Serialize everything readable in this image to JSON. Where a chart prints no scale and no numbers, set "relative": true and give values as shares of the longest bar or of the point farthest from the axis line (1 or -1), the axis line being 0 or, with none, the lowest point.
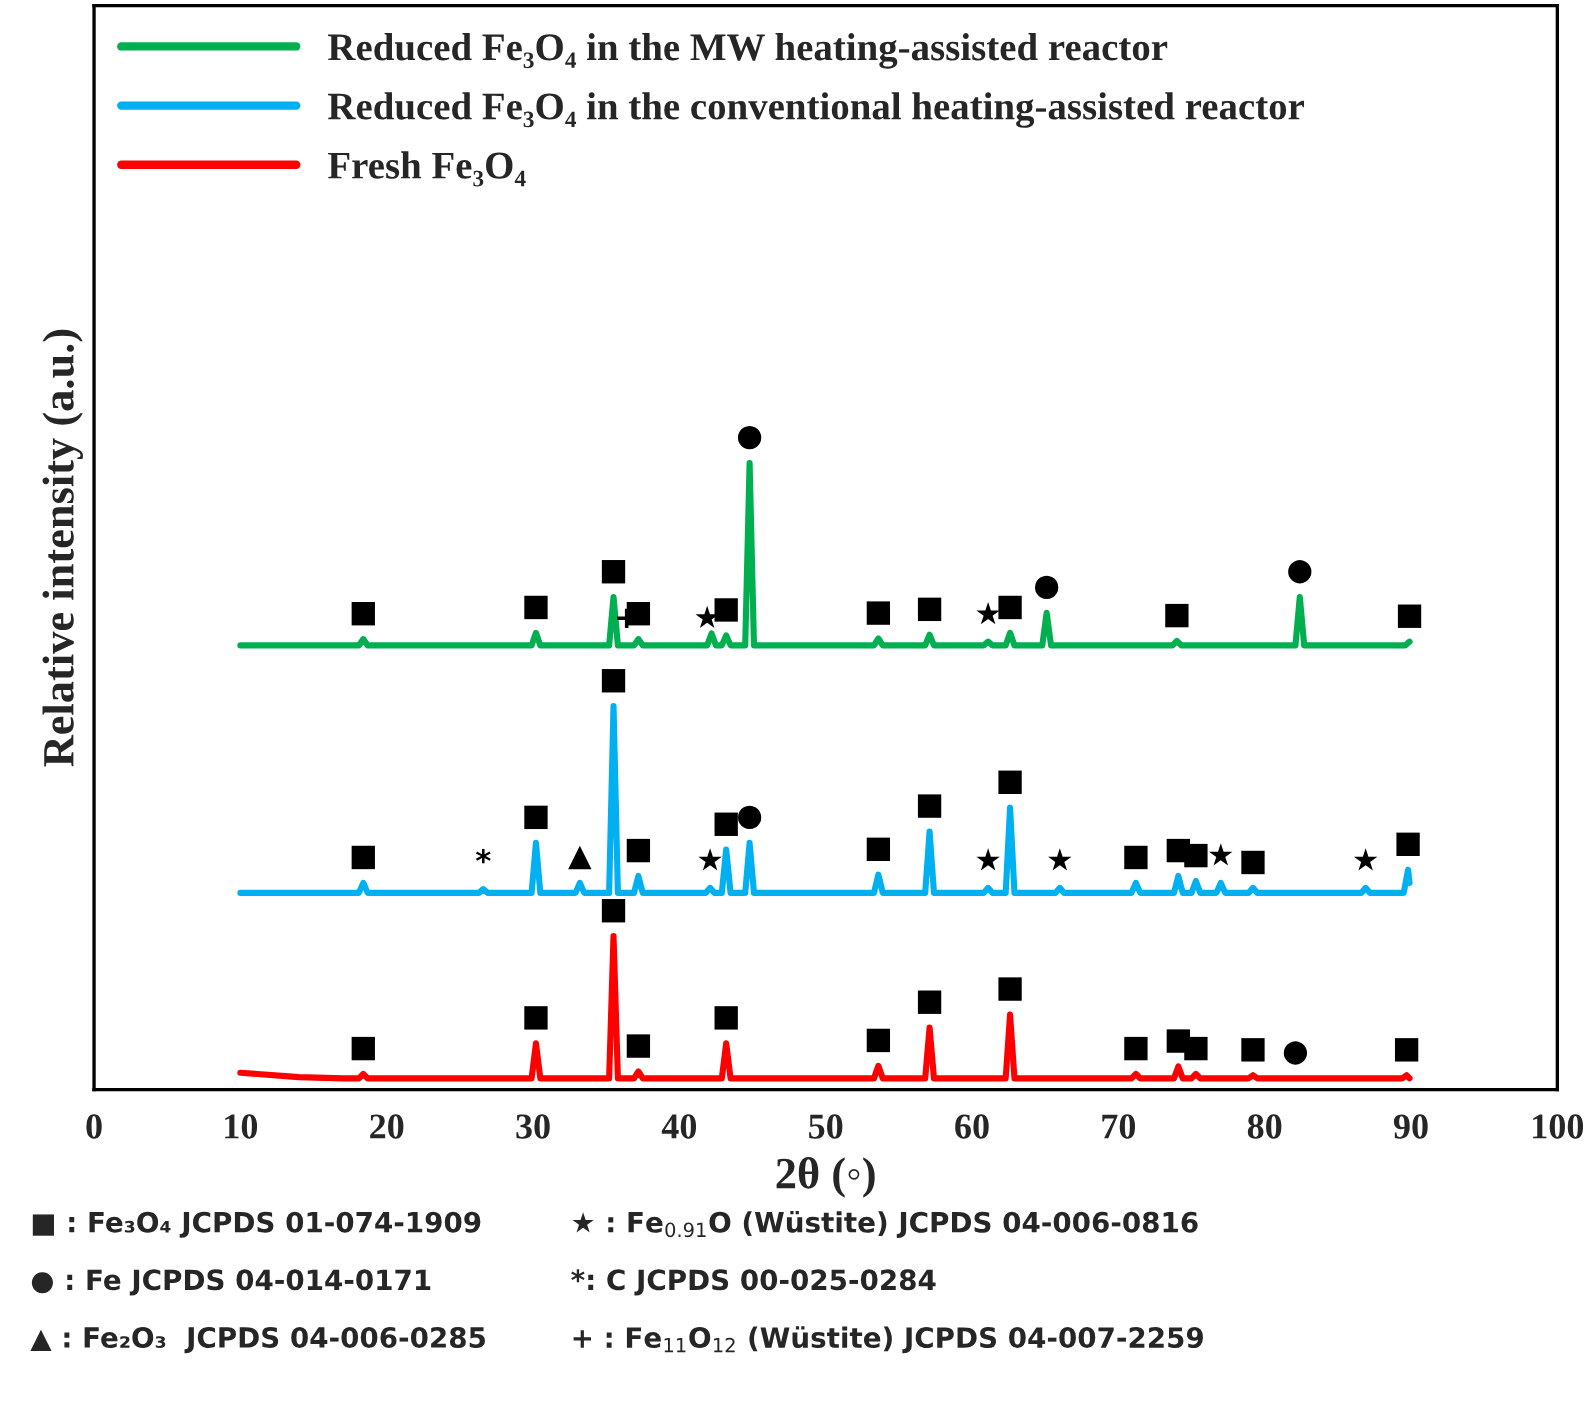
{
  "chart_data": {
    "type": "line",
    "relative": true,
    "xlabel": "2θ (◦)",
    "ylabel": "Relative intensity (a.u.)",
    "xlim": [
      0,
      100
    ],
    "xticks": [
      0,
      10,
      20,
      30,
      40,
      50,
      60,
      70,
      80,
      90,
      100
    ],
    "tick_labels": "x",
    "grid": false,
    "legend": "top left",
    "marker": "none",
    "line_style": "solid",
    "series": [
      {
        "name": "Reduced Fe₃O₄ in the MW heating-assisted reactor",
        "color": "#00b050",
        "x": [
          10,
          18.1,
          18.4,
          18.7,
          29.9,
          30.2,
          30.5,
          35.2,
          35.5,
          35.8,
          36.9,
          37.2,
          37.5,
          41.9,
          42.2,
          42.5,
          42.9,
          43.2,
          43.5,
          44.5,
          44.8,
          45.1,
          53.3,
          53.6,
          53.9,
          56.8,
          57.1,
          57.4,
          60.8,
          61.1,
          61.4,
          62.3,
          62.6,
          62.9,
          64.8,
          65.1,
          65.4,
          73.7,
          74.0,
          74.3,
          82.1,
          82.4,
          82.7,
          89.6,
          89.9
        ],
        "values": [
          0.709,
          0.709,
          0.719,
          0.709,
          0.709,
          0.729,
          0.709,
          0.709,
          0.786,
          0.709,
          0.709,
          0.719,
          0.709,
          0.709,
          0.728,
          0.709,
          0.709,
          0.725,
          0.709,
          0.709,
          1,
          0.709,
          0.709,
          0.72,
          0.709,
          0.709,
          0.726,
          0.709,
          0.709,
          0.715,
          0.709,
          0.709,
          0.729,
          0.709,
          0.709,
          0.761,
          0.709,
          0.709,
          0.716,
          0.709,
          0.709,
          0.786,
          0.709,
          0.709,
          0.715
        ]
      },
      {
        "name": "Reduced Fe₃O₄ in the conventional heating-assisted reactor",
        "color": "#00b0f0",
        "x": [
          10,
          18.1,
          18.4,
          18.7,
          26.3,
          26.6,
          26.9,
          29.9,
          30.2,
          30.5,
          32.9,
          33.2,
          33.5,
          35.2,
          35.5,
          35.8,
          36.9,
          37.2,
          37.5,
          41.8,
          42.1,
          42.4,
          42.9,
          43.2,
          43.5,
          44.5,
          44.8,
          45.1,
          53.3,
          53.6,
          53.9,
          56.8,
          57.1,
          57.4,
          60.8,
          61.1,
          61.4,
          62.3,
          62.6,
          62.9,
          65.7,
          66.0,
          66.3,
          70.9,
          71.2,
          71.5,
          73.8,
          74.1,
          74.4,
          75.0,
          75.3,
          75.6,
          76.7,
          77.0,
          77.3,
          78.9,
          79.2,
          79.5,
          86.6,
          86.9,
          87.2,
          89.5,
          89.8,
          89.9
        ],
        "values": [
          0.314,
          0.314,
          0.33,
          0.314,
          0.314,
          0.32,
          0.314,
          0.314,
          0.394,
          0.314,
          0.314,
          0.33,
          0.314,
          0.314,
          0.612,
          0.314,
          0.314,
          0.341,
          0.314,
          0.314,
          0.322,
          0.314,
          0.314,
          0.383,
          0.314,
          0.314,
          0.394,
          0.314,
          0.314,
          0.343,
          0.314,
          0.314,
          0.412,
          0.314,
          0.314,
          0.322,
          0.314,
          0.314,
          0.45,
          0.314,
          0.314,
          0.322,
          0.314,
          0.314,
          0.33,
          0.314,
          0.314,
          0.341,
          0.314,
          0.314,
          0.333,
          0.314,
          0.314,
          0.33,
          0.314,
          0.314,
          0.322,
          0.314,
          0.314,
          0.322,
          0.314,
          0.314,
          0.351,
          0.33
        ]
      },
      {
        "name": "Fresh Fe₃O₄",
        "color": "#ff0000",
        "x": [
          10,
          14,
          17,
          18.1,
          18.4,
          18.7,
          29.9,
          30.2,
          30.5,
          35.2,
          35.5,
          35.8,
          36.9,
          37.2,
          37.5,
          42.9,
          43.2,
          43.5,
          53.3,
          53.6,
          53.9,
          56.8,
          57.1,
          57.4,
          62.3,
          62.6,
          62.9,
          70.9,
          71.2,
          71.5,
          73.8,
          74.1,
          74.4,
          75.0,
          75.3,
          75.6,
          78.9,
          79.2,
          79.5,
          89.4,
          89.7,
          89.9
        ],
        "values": [
          0.027,
          0.02,
          0.018,
          0.018,
          0.025,
          0.018,
          0.018,
          0.074,
          0.018,
          0.018,
          0.245,
          0.018,
          0.018,
          0.029,
          0.018,
          0.018,
          0.074,
          0.018,
          0.018,
          0.038,
          0.018,
          0.018,
          0.099,
          0.018,
          0.018,
          0.12,
          0.018,
          0.018,
          0.025,
          0.018,
          0.018,
          0.037,
          0.018,
          0.018,
          0.025,
          0.018,
          0.018,
          0.023,
          0.018,
          0.018,
          0.023,
          0.018
        ]
      }
    ],
    "annotations": [
      {
        "text": "■",
        "x": 18.4,
        "y": 0.719
      },
      {
        "text": "■",
        "x": 30.2,
        "y": 0.729
      },
      {
        "text": "■",
        "x": 35.5,
        "y": 0.786
      },
      {
        "text": "+",
        "x": 36.4,
        "y": 0.709
      },
      {
        "text": "■",
        "x": 37.2,
        "y": 0.719
      },
      {
        "text": "★",
        "x": 41.9,
        "y": 0.709
      },
      {
        "text": "■",
        "x": 43.2,
        "y": 0.725
      },
      {
        "text": "●",
        "x": 44.8,
        "y": 1
      },
      {
        "text": "■",
        "x": 53.6,
        "y": 0.72
      },
      {
        "text": "■",
        "x": 57.1,
        "y": 0.726
      },
      {
        "text": "★",
        "x": 61.1,
        "y": 0.715
      },
      {
        "text": "■",
        "x": 62.6,
        "y": 0.729
      },
      {
        "text": "●",
        "x": 65.1,
        "y": 0.761
      },
      {
        "text": "■",
        "x": 74.0,
        "y": 0.716
      },
      {
        "text": "●",
        "x": 82.4,
        "y": 0.786
      },
      {
        "text": "■",
        "x": 89.9,
        "y": 0.715
      },
      {
        "text": "■",
        "x": 18.4,
        "y": 0.33
      },
      {
        "text": "*",
        "x": 26.6,
        "y": 0.32
      },
      {
        "text": "■",
        "x": 30.2,
        "y": 0.394
      },
      {
        "text": "▲",
        "x": 33.2,
        "y": 0.33
      },
      {
        "text": "■",
        "x": 35.5,
        "y": 0.612
      },
      {
        "text": "■",
        "x": 37.2,
        "y": 0.341
      },
      {
        "text": "★",
        "x": 42.1,
        "y": 0.322
      },
      {
        "text": "■",
        "x": 43.2,
        "y": 0.383
      },
      {
        "text": "●",
        "x": 44.8,
        "y": 0.394
      },
      {
        "text": "■",
        "x": 53.6,
        "y": 0.343
      },
      {
        "text": "■",
        "x": 57.1,
        "y": 0.412
      },
      {
        "text": "★",
        "x": 61.1,
        "y": 0.322
      },
      {
        "text": "■",
        "x": 62.6,
        "y": 0.45
      },
      {
        "text": "★",
        "x": 66.0,
        "y": 0.322
      },
      {
        "text": "■",
        "x": 71.2,
        "y": 0.33
      },
      {
        "text": "■",
        "x": 74.1,
        "y": 0.341
      },
      {
        "text": "■",
        "x": 75.3,
        "y": 0.333
      },
      {
        "text": "★",
        "x": 77.0,
        "y": 0.33
      },
      {
        "text": "■",
        "x": 79.2,
        "y": 0.322
      },
      {
        "text": "★",
        "x": 86.9,
        "y": 0.322
      },
      {
        "text": "■",
        "x": 89.8,
        "y": 0.351
      },
      {
        "text": "■",
        "x": 18.4,
        "y": 0.025
      },
      {
        "text": "■",
        "x": 30.2,
        "y": 0.074
      },
      {
        "text": "■",
        "x": 35.5,
        "y": 0.245
      },
      {
        "text": "■",
        "x": 37.2,
        "y": 0.029
      },
      {
        "text": "■",
        "x": 43.2,
        "y": 0.074
      },
      {
        "text": "■",
        "x": 53.6,
        "y": 0.038
      },
      {
        "text": "■",
        "x": 57.1,
        "y": 0.099
      },
      {
        "text": "■",
        "x": 62.6,
        "y": 0.12
      },
      {
        "text": "■",
        "x": 71.2,
        "y": 0.025
      },
      {
        "text": "■",
        "x": 74.1,
        "y": 0.037
      },
      {
        "text": "■",
        "x": 75.3,
        "y": 0.025
      },
      {
        "text": "■",
        "x": 79.2,
        "y": 0.023
      },
      {
        "text": "●",
        "x": 82.1,
        "y": 0.018
      },
      {
        "text": "■",
        "x": 89.7,
        "y": 0.023
      },
      "■ : Fe₃O₄ JCPDS 01-074-1909",
      "★ : Fe$_{0.91}$O (Wüstite) JCPDS 04-006-0816",
      "● : Fe JCPDS 04-014-0171",
      "*: C JCPDS 00-025-0284",
      "▲ : Fe₂O₃  JCPDS 04-006-0285",
      "+ : Fe$_{11}$O$_{12}$ (Wüstite) JCPDS 04-007-2259"
    ]
  }
}
